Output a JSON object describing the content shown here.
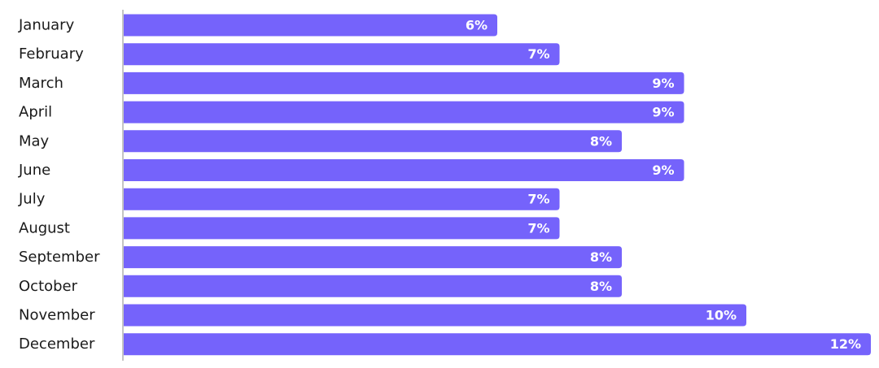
{
  "chart_data": {
    "type": "bar",
    "orientation": "horizontal",
    "categories": [
      "January",
      "February",
      "March",
      "April",
      "May",
      "June",
      "July",
      "August",
      "September",
      "October",
      "November",
      "December"
    ],
    "values": [
      6,
      7,
      9,
      9,
      8,
      9,
      7,
      7,
      8,
      8,
      10,
      12
    ],
    "value_labels": [
      "6%",
      "7%",
      "9%",
      "9%",
      "8%",
      "9%",
      "7%",
      "7%",
      "8%",
      "8%",
      "10%",
      "12%"
    ],
    "title": "",
    "xlabel": "",
    "ylabel": "",
    "xlim": [
      0,
      12
    ],
    "grid": false,
    "colors": {
      "bar": "#7563fb",
      "axis": "#b0b0b0",
      "label": "#1a1a1a",
      "value_text": "#ffffff"
    }
  }
}
